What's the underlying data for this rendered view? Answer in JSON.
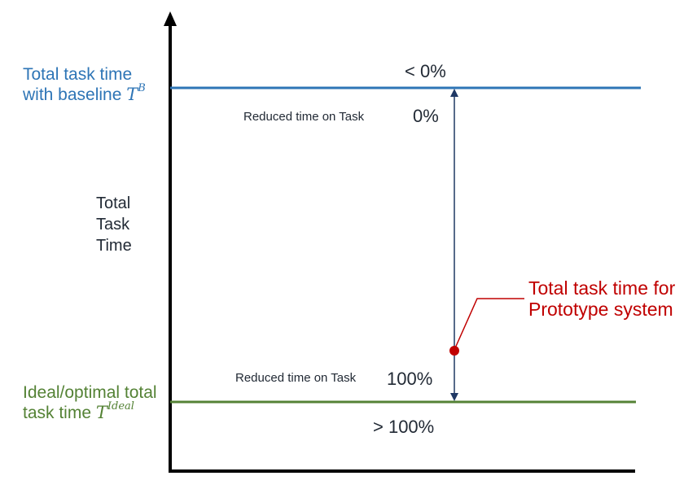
{
  "baseline": {
    "label_line1": "Total task time",
    "label_line2": "with baseline ",
    "symbol": "T",
    "symbol_sup": "B",
    "color": "#2e75b6"
  },
  "ideal": {
    "label_line1": "Ideal/optimal total",
    "label_line2": "task time ",
    "symbol": "T",
    "symbol_sup": "Ideal",
    "color": "#548235"
  },
  "y_axis_label": [
    "Total",
    "Task",
    "Time"
  ],
  "percent_labels": {
    "above_baseline": "< 0%",
    "at_baseline": "0%",
    "at_ideal": "100%",
    "below_ideal": "> 100%"
  },
  "reduced_label_top": "Reduced time on Task",
  "reduced_label_bottom": "Reduced time on Task",
  "prototype": {
    "label_line1": "Total task time for",
    "label_line2": "Prototype system",
    "color": "#c00000"
  },
  "colors": {
    "axis": "#000000",
    "range_arrow": "#1f3864",
    "text": "#222a35"
  }
}
